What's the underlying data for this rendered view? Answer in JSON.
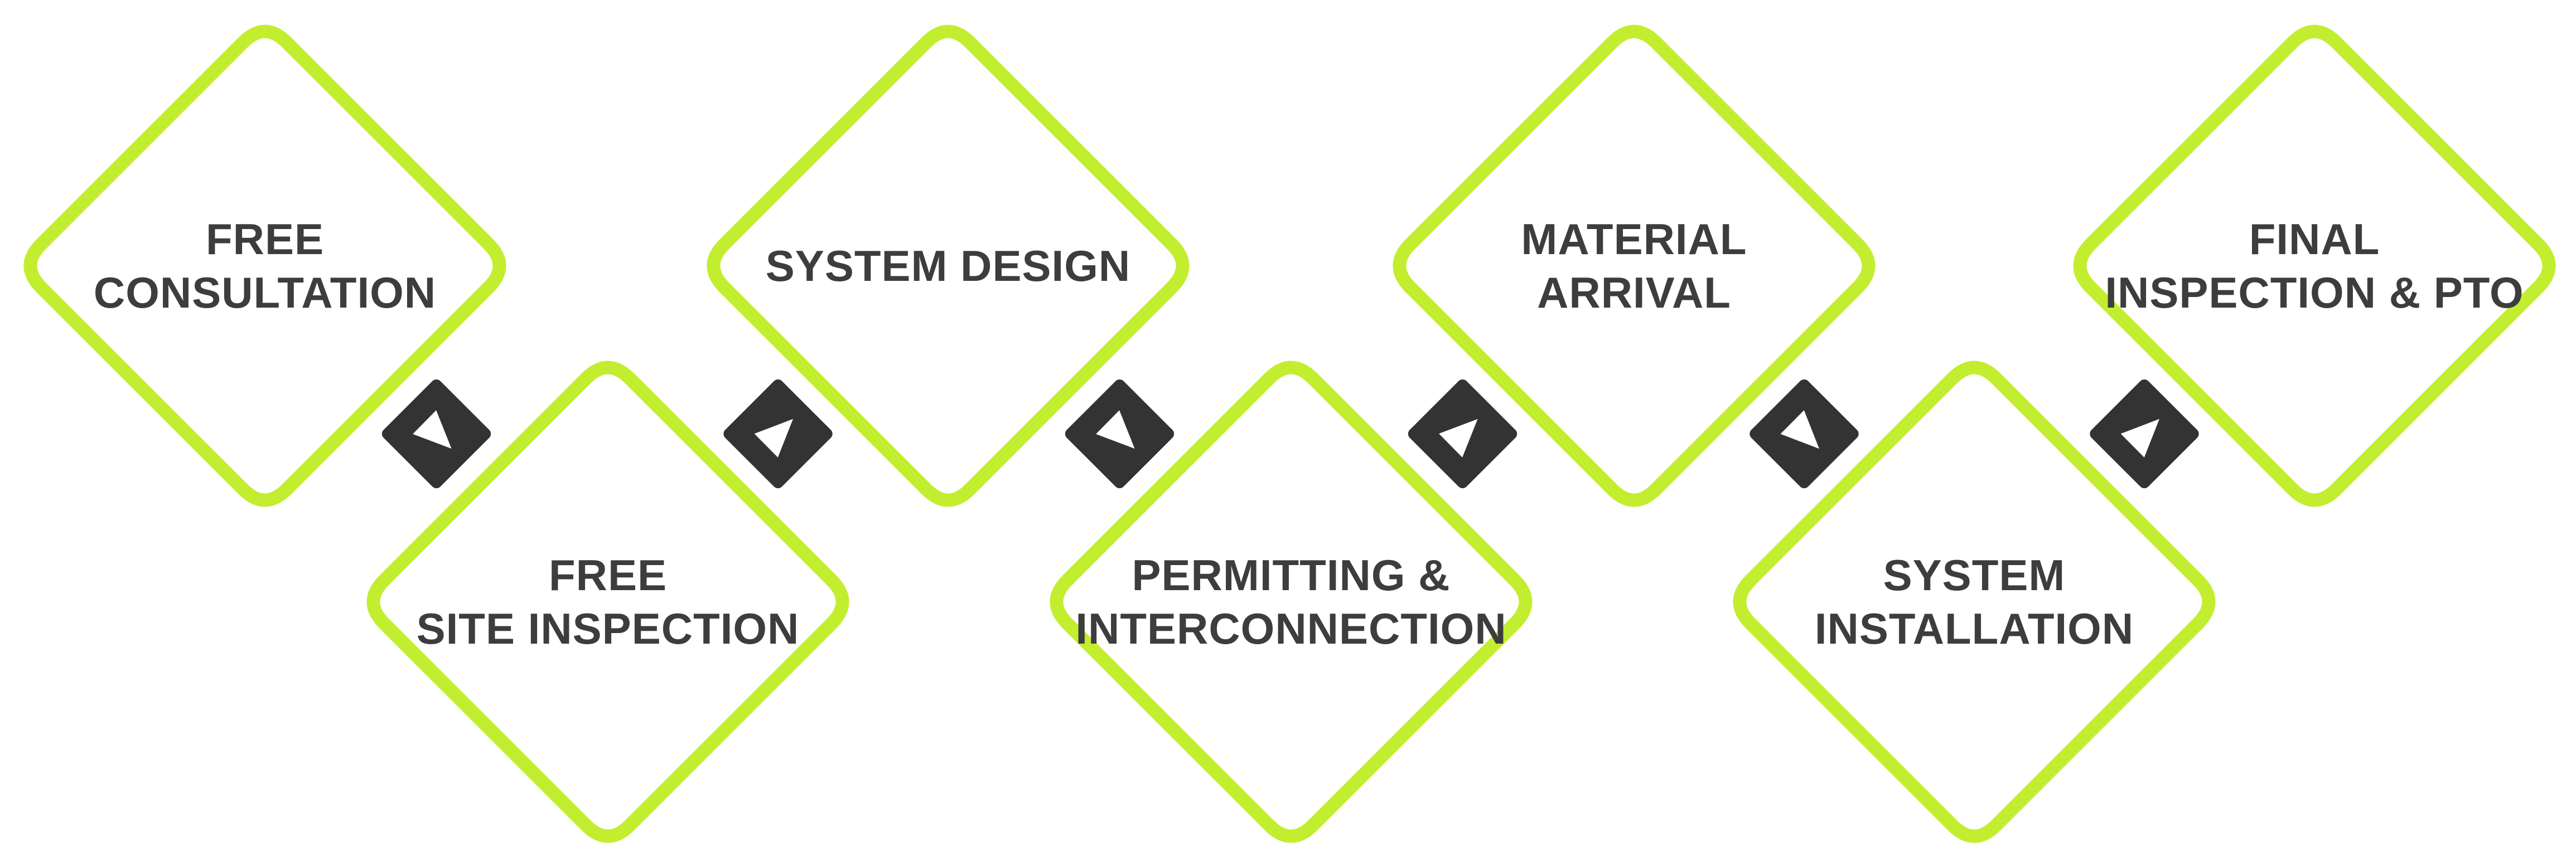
{
  "colors": {
    "background": "#ffffff",
    "diamond_border": "#c2ee2f",
    "diamond_fill": "#ffffff",
    "connector": "#333333",
    "arrow": "#ffffff",
    "text": "#3d3d3d"
  },
  "steps": [
    {
      "lines": [
        "FREE",
        "CONSULTATION"
      ]
    },
    {
      "lines": [
        "FREE",
        "SITE INSPECTION"
      ]
    },
    {
      "lines": [
        "SYSTEM DESIGN"
      ]
    },
    {
      "lines": [
        "PERMITTING &",
        "INTERCONNECTION"
      ]
    },
    {
      "lines": [
        "MATERIAL",
        "ARRIVAL"
      ]
    },
    {
      "lines": [
        "SYSTEM",
        "INSTALLATION"
      ]
    },
    {
      "lines": [
        "FINAL",
        "INSPECTION & PTO"
      ]
    }
  ],
  "connector_icons": [
    "play-arrow-icon",
    "play-arrow-icon",
    "play-arrow-icon",
    "play-arrow-icon",
    "play-arrow-icon",
    "play-arrow-icon"
  ]
}
